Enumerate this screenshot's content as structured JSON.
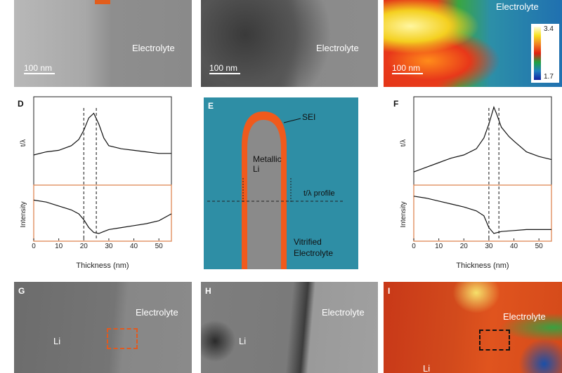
{
  "panels": {
    "A": {
      "region_label": "Electrolyte",
      "scale_bar": "100 nm"
    },
    "B": {
      "region_label": "Electrolyte",
      "scale_bar": "100 nm"
    },
    "C": {
      "region_label": "Electrolyte",
      "scale_bar": "100 nm",
      "colorbar": {
        "max": "3.4",
        "min": "1.7"
      }
    },
    "D": {
      "letter": "D",
      "ylabel_top": "t/λ",
      "ylabel_bottom": "Intensity",
      "xlabel": "Thickness (nm)",
      "ticks": [
        "0",
        "10",
        "20",
        "30",
        "40",
        "50"
      ]
    },
    "E": {
      "letter": "E",
      "sei_label": "SEI",
      "metal_label_1": "Metallic",
      "metal_label_2": "Li",
      "profile_label": "t/λ profile",
      "electrolyte_label_1": "Vitrified",
      "electrolyte_label_2": "Electrolyte"
    },
    "F": {
      "letter": "F",
      "ylabel_top": "t/λ",
      "ylabel_bottom": "Intensity",
      "xlabel": "Thickness (nm)",
      "ticks": [
        "0",
        "10",
        "20",
        "30",
        "40",
        "50"
      ]
    },
    "G": {
      "letter": "G",
      "region_label": "Electrolyte",
      "li_label": "Li"
    },
    "H": {
      "letter": "H",
      "region_label": "Electrolyte",
      "li_label": "Li"
    },
    "I": {
      "letter": "I",
      "region_label": "Electrolyte",
      "li_label": "Li"
    }
  },
  "chart_data": [
    {
      "type": "line",
      "title": "D",
      "xlabel": "Thickness (nm)",
      "xlim": [
        0,
        55
      ],
      "markers_x": [
        20,
        25
      ],
      "series": [
        {
          "name": "t/λ",
          "x": [
            0,
            5,
            10,
            15,
            18,
            20,
            22,
            24,
            26,
            28,
            30,
            35,
            40,
            45,
            50,
            55
          ],
          "y": [
            0.3,
            0.34,
            0.36,
            0.42,
            0.5,
            0.62,
            0.78,
            0.84,
            0.7,
            0.52,
            0.42,
            0.38,
            0.36,
            0.34,
            0.32,
            0.32
          ]
        },
        {
          "name": "Intensity",
          "x": [
            0,
            5,
            10,
            15,
            18,
            20,
            22,
            24,
            26,
            28,
            30,
            35,
            40,
            45,
            50,
            55
          ],
          "y": [
            0.78,
            0.74,
            0.66,
            0.58,
            0.5,
            0.38,
            0.22,
            0.12,
            0.1,
            0.14,
            0.18,
            0.22,
            0.26,
            0.3,
            0.36,
            0.5
          ]
        }
      ]
    },
    {
      "type": "line",
      "title": "F",
      "xlabel": "Thickness (nm)",
      "xlim": [
        0,
        55
      ],
      "markers_x": [
        30,
        34
      ],
      "series": [
        {
          "name": "t/λ",
          "x": [
            0,
            5,
            10,
            15,
            20,
            25,
            28,
            30,
            32,
            33,
            35,
            38,
            40,
            45,
            50,
            55
          ],
          "y": [
            0.08,
            0.14,
            0.2,
            0.26,
            0.3,
            0.38,
            0.52,
            0.7,
            0.92,
            0.84,
            0.66,
            0.54,
            0.48,
            0.34,
            0.28,
            0.24
          ]
        },
        {
          "name": "Intensity",
          "x": [
            0,
            5,
            10,
            15,
            20,
            25,
            28,
            30,
            32,
            35,
            40,
            45,
            50,
            55
          ],
          "y": [
            0.86,
            0.82,
            0.76,
            0.7,
            0.64,
            0.56,
            0.46,
            0.22,
            0.1,
            0.14,
            0.16,
            0.18,
            0.18,
            0.18
          ]
        }
      ]
    }
  ]
}
